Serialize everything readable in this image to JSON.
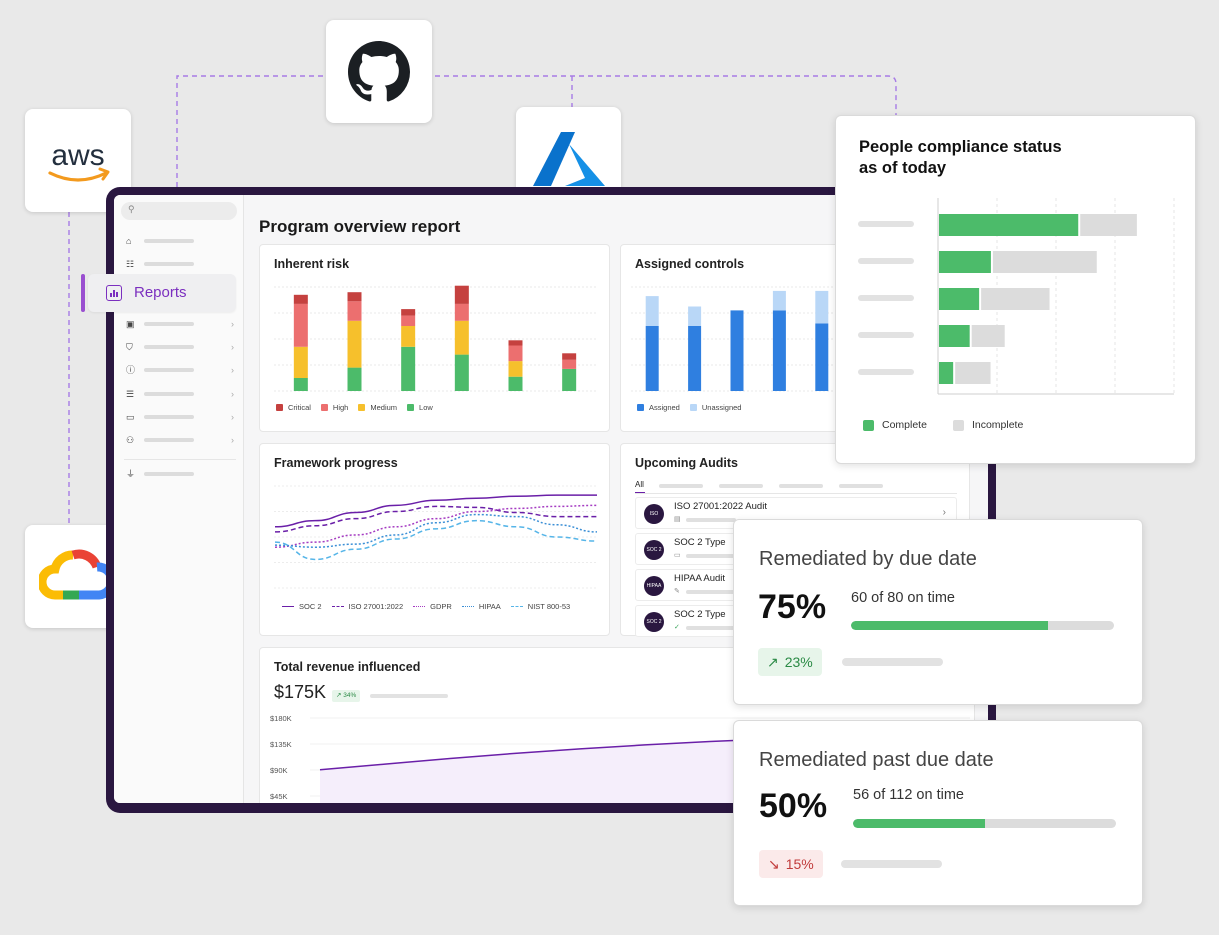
{
  "integrations": [
    {
      "name": "aws",
      "label": "aws"
    },
    {
      "name": "github"
    },
    {
      "name": "azure"
    },
    {
      "name": "google-cloud"
    }
  ],
  "app": {
    "page_title": "Program overview report",
    "nav_active_label": "Reports",
    "nav_icons": [
      "home-icon",
      "checklist-icon",
      "reports-icon",
      "clipboard-icon",
      "shield-icon",
      "info-icon",
      "database-icon",
      "monitor-icon",
      "people-icon",
      "plug-icon"
    ]
  },
  "inherent_risk": {
    "title": "Inherent risk",
    "chart_data": {
      "type": "bar",
      "stacked": true,
      "categories": [
        "1",
        "2",
        "3",
        "4",
        "5",
        "6"
      ],
      "series": [
        {
          "name": "Low",
          "color": "#4cbb6a",
          "values": [
            10,
            18,
            34,
            28,
            11,
            17
          ]
        },
        {
          "name": "Medium",
          "color": "#f6c02c",
          "values": [
            24,
            36,
            16,
            26,
            12,
            0
          ]
        },
        {
          "name": "High",
          "color": "#ec6f6f",
          "values": [
            33,
            15,
            8,
            13,
            12,
            7
          ]
        },
        {
          "name": "Critical",
          "color": "#c5413f",
          "values": [
            7,
            7,
            5,
            14,
            4,
            5
          ]
        }
      ],
      "ylim": [
        0,
        80
      ]
    }
  },
  "assigned_controls": {
    "title": "Assigned controls",
    "chart_data": {
      "type": "bar",
      "stacked": true,
      "categories": [
        "1",
        "2",
        "3",
        "4",
        "5"
      ],
      "series": [
        {
          "name": "Assigned",
          "color": "#2f7fe0",
          "values": [
            50,
            50,
            62,
            62,
            52
          ]
        },
        {
          "name": "Unassigned",
          "color": "#b9d7f7",
          "values": [
            23,
            15,
            0,
            15,
            25
          ]
        }
      ],
      "ylim": [
        0,
        80
      ]
    }
  },
  "framework_progress": {
    "title": "Framework progress",
    "chart_data": {
      "type": "line",
      "x": [
        0,
        1,
        2,
        3,
        4,
        5,
        6,
        7,
        8
      ],
      "series": [
        {
          "name": "SOC 2",
          "color": "#6a1fa8",
          "dash": "solid",
          "values": [
            60,
            66,
            74,
            81,
            86,
            88,
            90,
            91,
            91
          ]
        },
        {
          "name": "ISO 27001:2022",
          "color": "#6a1fa8",
          "dash": "dashed",
          "values": [
            55,
            61,
            68,
            75,
            80,
            79,
            74,
            70,
            70
          ]
        },
        {
          "name": "GDPR",
          "color": "#a53cc2",
          "dash": "dotted",
          "values": [
            40,
            45,
            52,
            60,
            68,
            75,
            78,
            80,
            81
          ]
        },
        {
          "name": "HIPAA",
          "color": "#3b8fd6",
          "dash": "dotted",
          "values": [
            42,
            40,
            43,
            52,
            64,
            72,
            70,
            62,
            55
          ]
        },
        {
          "name": "NIST 800-53",
          "color": "#56b5e8",
          "dash": "dashed",
          "values": [
            45,
            28,
            38,
            48,
            58,
            66,
            60,
            50,
            46
          ]
        }
      ],
      "ylim": [
        0,
        100
      ]
    }
  },
  "upcoming_audits": {
    "title": "Upcoming Audits",
    "tab_all": "All",
    "rows": [
      {
        "name": "ISO 27001:2022 Audit",
        "badge": "ISO"
      },
      {
        "name": "SOC 2 Type",
        "badge": "SOC 2"
      },
      {
        "name": "HIPAA Audit",
        "badge": "HIPAA"
      },
      {
        "name": "SOC 2 Type",
        "badge": "SOC 2"
      }
    ]
  },
  "revenue": {
    "title": "Total revenue influenced",
    "value": "$175K",
    "change": "34%",
    "chart_data": {
      "type": "area",
      "x": [
        0,
        1,
        2,
        3,
        4,
        5,
        6,
        7,
        8,
        9,
        10
      ],
      "values": [
        90,
        100,
        110,
        119,
        127,
        134,
        140,
        145,
        149,
        152,
        154
      ],
      "y_ticks": [
        "$180K",
        "$135K",
        "$90K",
        "$45K"
      ],
      "ylim": [
        40,
        185
      ]
    }
  },
  "people_compliance": {
    "title_line1": "People compliance status",
    "title_line2": "as of today",
    "chart_data": {
      "type": "bar",
      "orientation": "horizontal",
      "stacked": true,
      "categories": [
        "1",
        "2",
        "3",
        "4",
        "5"
      ],
      "series": [
        {
          "name": "Complete",
          "color": "#4cbb6a",
          "values": [
            59,
            22,
            17,
            13,
            6
          ]
        },
        {
          "name": "Incomplete",
          "color": "#dcdcdc",
          "values": [
            24,
            44,
            29,
            14,
            15
          ]
        }
      ],
      "xlim": [
        0,
        100
      ]
    },
    "legend_complete": "Complete",
    "legend_incomplete": "Incomplete"
  },
  "remediated_due": {
    "title": "Remediated by due date",
    "percent": "75%",
    "ontime": "60 of 80 on time",
    "progress": 0.75,
    "change": "23%"
  },
  "remediated_past": {
    "title": "Remediated past due date",
    "percent": "50%",
    "ontime": "56 of 112 on time",
    "progress": 0.5,
    "change": "15%"
  }
}
